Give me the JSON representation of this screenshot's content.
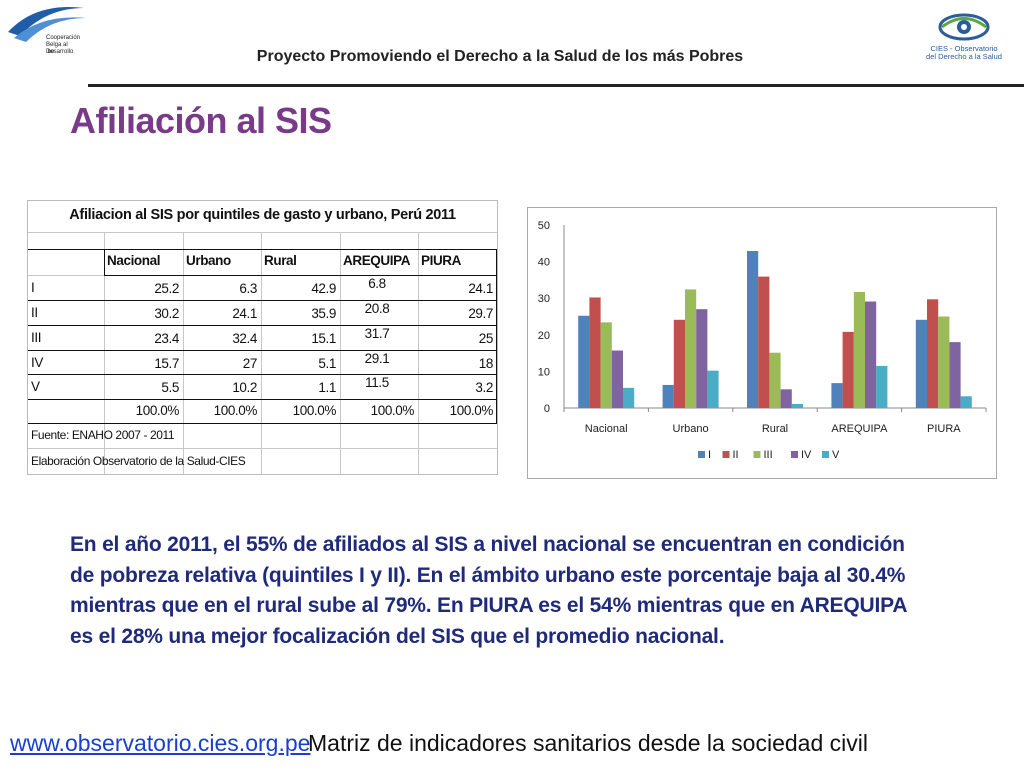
{
  "header": {
    "title": "Proyecto Promoviendo el Derecho a la Salud de los más Pobres",
    "logo_left_lines": [
      "Cooperación",
      "Belga al Desarrollo",
      ".be"
    ],
    "logo_right_lines": [
      "CIES - Observatorio",
      "del Derecho a la Salud"
    ]
  },
  "slide_title": "Afiliación al SIS",
  "table": {
    "caption": "Afiliacion al SIS por quintiles de gasto y urbano, Perú 2011",
    "columns": [
      "Nacional",
      "Urbano",
      "Rural",
      "AREQUIPA",
      "PIURA"
    ],
    "rows": [
      {
        "label": "I",
        "values": [
          "25.2",
          "6.3",
          "42.9",
          "6.8",
          "24.1"
        ]
      },
      {
        "label": "II",
        "values": [
          "30.2",
          "24.1",
          "35.9",
          "20.8",
          "29.7"
        ]
      },
      {
        "label": "III",
        "values": [
          "23.4",
          "32.4",
          "15.1",
          "31.7",
          "25"
        ]
      },
      {
        "label": "IV",
        "values": [
          "15.7",
          "27",
          "5.1",
          "29.1",
          "18"
        ]
      },
      {
        "label": "V",
        "values": [
          "5.5",
          "10.2",
          "1.1",
          "11.5",
          "3.2"
        ]
      }
    ],
    "totals": [
      "100.0%",
      "100.0%",
      "100.0%",
      "100.0%",
      "100.0%"
    ],
    "source": "Fuente: ENAHO 2007 - 2011",
    "elaboration": "Elaboración Observatorio de la Salud-CIES"
  },
  "chart_data": {
    "type": "bar",
    "categories": [
      "Nacional",
      "Urbano",
      "Rural",
      "AREQUIPA",
      "PIURA"
    ],
    "series": [
      {
        "name": "I",
        "color": "#4f81bd",
        "values": [
          25.2,
          6.3,
          42.9,
          6.8,
          24.1
        ]
      },
      {
        "name": "II",
        "color": "#c0504d",
        "values": [
          30.2,
          24.1,
          35.9,
          20.8,
          29.7
        ]
      },
      {
        "name": "III",
        "color": "#9bbb59",
        "values": [
          23.4,
          32.4,
          15.1,
          31.7,
          25
        ]
      },
      {
        "name": "IV",
        "color": "#8064a2",
        "values": [
          15.7,
          27,
          5.1,
          29.1,
          18
        ]
      },
      {
        "name": "V",
        "color": "#4bacc6",
        "values": [
          5.5,
          10.2,
          1.1,
          11.5,
          3.2
        ]
      }
    ],
    "yticks": [
      0,
      10,
      20,
      30,
      40,
      50
    ],
    "ylim": [
      0,
      50
    ],
    "grid": false,
    "legend": "bottom"
  },
  "body_text": "En el año 2011, el 55% de afiliados al SIS a nivel nacional se encuentran en condición de pobreza relativa (quintiles I  y II). En el ámbito urbano este porcentaje baja al 30.4% mientras que en el rural sube al 79%.  En  PIURA es el 54% mientras que en AREQUIPA  es el 28% una mejor focalización del SIS que el promedio nacional.",
  "footer": {
    "link": "www.observatorio.cies.org.pe",
    "text": "Matriz de indicadores sanitarios desde la sociedad civil"
  }
}
